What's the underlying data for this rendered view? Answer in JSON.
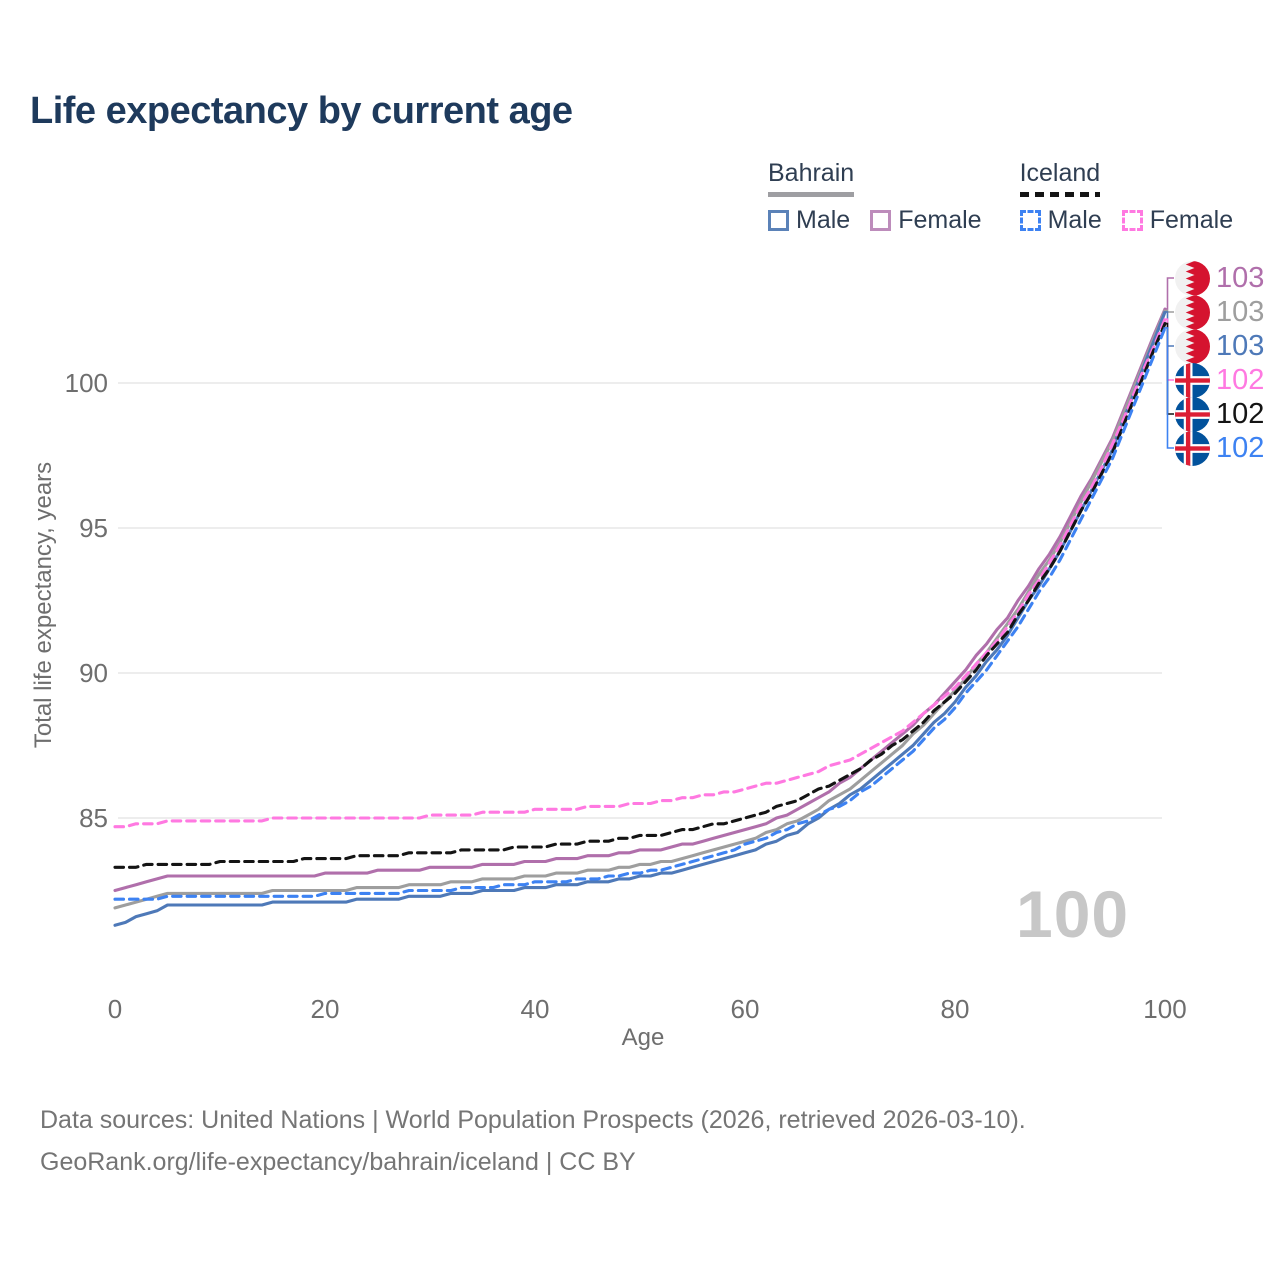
{
  "title": "Life expectancy by current age",
  "legend": {
    "groups": [
      {
        "name": "Bahrain",
        "line_style": "solid",
        "underline_color": "#9e9ea2",
        "items": [
          {
            "label": "Male",
            "color": "#5b82b8",
            "style": "solid"
          },
          {
            "label": "Female",
            "color": "#bd8cbb",
            "style": "solid"
          }
        ]
      },
      {
        "name": "Iceland",
        "line_style": "dashed",
        "underline_color": "#141414",
        "items": [
          {
            "label": "Male",
            "color": "#3d82f2",
            "style": "dashed"
          },
          {
            "label": "Female",
            "color": "#ff79e1",
            "style": "dashed"
          }
        ]
      }
    ]
  },
  "chart_data": {
    "type": "line",
    "title": "Life expectancy by current age",
    "xlabel": "Age",
    "ylabel": "Total life expectancy, years",
    "x_ticks": [
      0,
      20,
      40,
      60,
      80,
      100
    ],
    "y_ticks": [
      85,
      90,
      95,
      100
    ],
    "xlim": [
      0,
      100
    ],
    "ylim_visible": [
      85,
      100
    ],
    "grid": "horizontal",
    "ages": [
      0,
      5,
      10,
      15,
      20,
      25,
      30,
      35,
      40,
      45,
      50,
      55,
      60,
      65,
      70,
      75,
      80,
      85,
      90,
      95,
      100
    ],
    "series": [
      {
        "id": "bahrain-female",
        "country": "Bahrain",
        "sex": "Female",
        "line": "solid",
        "color": "#b06fab",
        "flag": "bahrain",
        "end_label": "103",
        "values": [
          82.45,
          82.95,
          83.0,
          83.0,
          83.05,
          83.15,
          83.25,
          83.35,
          83.5,
          83.65,
          83.85,
          84.1,
          84.55,
          85.25,
          86.4,
          87.85,
          89.65,
          91.9,
          94.7,
          98.1,
          102.55
        ]
      },
      {
        "id": "bahrain-both-sexes",
        "country": "Bahrain",
        "sex": "Both sexes",
        "line": "solid",
        "color": "#9e9e9e",
        "flag": "bahrain",
        "end_label": "103",
        "values": [
          81.9,
          82.35,
          82.4,
          82.45,
          82.5,
          82.6,
          82.7,
          82.85,
          83.0,
          83.15,
          83.35,
          83.65,
          84.15,
          84.9,
          86.0,
          87.5,
          89.35,
          91.65,
          94.5,
          97.95,
          102.5
        ]
      },
      {
        "id": "bahrain-male",
        "country": "Bahrain",
        "sex": "Male",
        "line": "solid",
        "color": "#4e79b8",
        "flag": "bahrain",
        "end_label": "103",
        "values": [
          81.3,
          81.95,
          82.0,
          82.05,
          82.1,
          82.2,
          82.3,
          82.45,
          82.6,
          82.75,
          82.95,
          83.25,
          83.75,
          84.5,
          85.75,
          87.15,
          89.0,
          91.3,
          94.2,
          97.7,
          102.45
        ]
      },
      {
        "id": "iceland-female",
        "country": "Iceland",
        "sex": "Female",
        "line": "dashed",
        "color": "#ff79e1",
        "flag": "iceland",
        "end_label": "102",
        "values": [
          84.7,
          84.85,
          84.9,
          84.95,
          85.0,
          85.0,
          85.05,
          85.15,
          85.25,
          85.35,
          85.5,
          85.7,
          86.0,
          86.4,
          87.0,
          88.0,
          89.45,
          91.55,
          94.35,
          97.85,
          102.2
        ]
      },
      {
        "id": "iceland-both-sexes",
        "country": "Iceland",
        "sex": "Both sexes",
        "line": "dashed",
        "color": "#141414",
        "flag": "iceland",
        "end_label": "102",
        "values": [
          83.3,
          83.4,
          83.45,
          83.5,
          83.6,
          83.7,
          83.8,
          83.9,
          84.0,
          84.15,
          84.35,
          84.6,
          85.0,
          85.6,
          86.5,
          87.7,
          89.3,
          91.4,
          94.2,
          97.6,
          102.05
        ]
      },
      {
        "id": "iceland-male",
        "country": "Iceland",
        "sex": "Male",
        "line": "dashed",
        "color": "#3d82f2",
        "flag": "iceland",
        "end_label": "102",
        "values": [
          82.2,
          82.25,
          82.3,
          82.3,
          82.35,
          82.4,
          82.5,
          82.6,
          82.75,
          82.9,
          83.1,
          83.45,
          84.05,
          84.75,
          85.6,
          86.95,
          88.8,
          91.05,
          93.9,
          97.35,
          101.9
        ]
      }
    ],
    "legend_position": "top-right"
  },
  "annotations": {
    "age_watermark": "100"
  },
  "flag_colors": {
    "bahrain_red": "#d5132f",
    "bahrain_white": "#f1f1f1",
    "iceland_blue": "#02529c",
    "iceland_red": "#dc1e35",
    "iceland_white": "#ffffff"
  },
  "footer": {
    "line1": "Data sources: United Nations | World Population Prospects (2026, retrieved 2026-03-10).",
    "line2": "GeoRank.org/life-expectancy/bahrain/iceland | CC BY"
  }
}
